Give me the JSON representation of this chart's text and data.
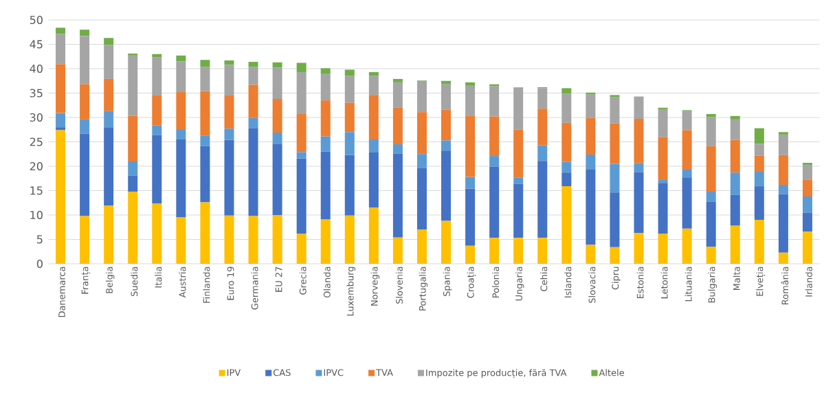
{
  "chart_data": {
    "type": "bar",
    "stacked": true,
    "categories": [
      "Danemarca",
      "Franța",
      "Belgia",
      "Suedia",
      "Italia",
      "Austria",
      "Finlanda",
      "Euro 19",
      "Germania",
      "EU 27",
      "Grecia",
      "Olanda",
      "Luxemburg",
      "Norvegia",
      "Slovenia",
      "Portugalia",
      "Spania",
      "Croația",
      "Polonia",
      "Ungaria",
      "Cehia",
      "Islanda",
      "Slovacia",
      "Cipru",
      "Estonia",
      "Letonia",
      "Lituania",
      "Bulgaria",
      "Malta",
      "Elveția",
      "România",
      "Irlanda"
    ],
    "series": [
      {
        "name": "IPV",
        "color": "#ffc000",
        "values": [
          27.4,
          9.8,
          11.9,
          14.8,
          12.4,
          9.5,
          12.6,
          9.9,
          9.8,
          10.0,
          6.2,
          9.1,
          9.9,
          11.5,
          5.4,
          7.0,
          8.8,
          3.7,
          5.3,
          5.3,
          5.3,
          15.9,
          3.9,
          3.4,
          6.3,
          6.2,
          7.2,
          3.5,
          7.8,
          9.0,
          2.3,
          6.6
        ]
      },
      {
        "name": "CAS",
        "color": "#4472c4",
        "values": [
          0.6,
          16.9,
          16.1,
          3.3,
          14.0,
          16.0,
          11.5,
          15.5,
          18.0,
          14.5,
          15.4,
          13.9,
          12.4,
          11.3,
          17.2,
          12.6,
          14.4,
          11.7,
          14.6,
          11.1,
          15.8,
          2.8,
          15.5,
          11.2,
          12.5,
          10.4,
          10.5,
          9.2,
          6.3,
          6.9,
          12.0,
          3.9
        ]
      },
      {
        "name": "IPVC",
        "color": "#5b9bd5",
        "values": [
          2.9,
          2.9,
          3.3,
          2.9,
          2.0,
          2.1,
          2.2,
          2.3,
          2.1,
          2.4,
          1.3,
          3.1,
          4.7,
          2.7,
          1.9,
          2.9,
          2.1,
          2.4,
          2.2,
          1.3,
          3.2,
          2.2,
          3.0,
          5.9,
          1.8,
          0.7,
          1.6,
          2.1,
          4.6,
          3.1,
          1.9,
          3.3
        ]
      },
      {
        "name": "TVA",
        "color": "#ed7d31",
        "values": [
          10.0,
          7.2,
          6.6,
          9.3,
          6.1,
          7.6,
          9.1,
          6.8,
          6.8,
          6.9,
          7.8,
          7.4,
          6.0,
          9.1,
          7.5,
          8.6,
          6.3,
          12.6,
          8.1,
          9.8,
          7.5,
          8.0,
          7.5,
          8.3,
          9.1,
          8.7,
          8.1,
          9.3,
          6.7,
          3.2,
          6.1,
          3.4
        ]
      },
      {
        "name": "Impozite pe producție, fără TVA",
        "color": "#a5a5a5",
        "values": [
          6.2,
          9.9,
          7.0,
          12.4,
          7.8,
          6.3,
          5.0,
          6.3,
          3.7,
          6.4,
          8.6,
          5.4,
          5.5,
          3.9,
          5.2,
          6.4,
          5.2,
          6.1,
          6.2,
          8.6,
          4.2,
          6.0,
          4.8,
          5.4,
          4.6,
          5.7,
          3.9,
          6.0,
          4.2,
          2.4,
          4.2,
          3.1
        ]
      },
      {
        "name": "Altele",
        "color": "#70ad47",
        "values": [
          1.3,
          1.3,
          1.4,
          0.4,
          0.7,
          1.2,
          1.4,
          0.9,
          1.0,
          1.1,
          1.9,
          1.2,
          1.3,
          0.8,
          0.7,
          0.1,
          0.7,
          0.7,
          0.4,
          0.1,
          0.2,
          1.1,
          0.4,
          0.4,
          0,
          0.3,
          0.2,
          0.6,
          0.7,
          3.2,
          0.5,
          0.4
        ]
      }
    ],
    "ylim": [
      0,
      50
    ],
    "yticks": [
      0,
      5,
      10,
      15,
      20,
      25,
      30,
      35,
      40,
      45,
      50
    ],
    "grid": "y",
    "legend": "bottom"
  }
}
